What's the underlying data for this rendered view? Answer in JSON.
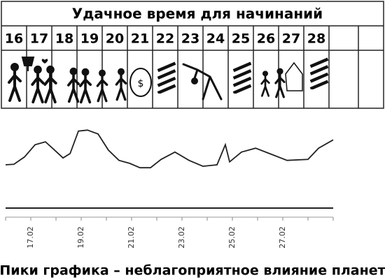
{
  "header": {
    "title": "Удачное время для начинаний"
  },
  "days": [
    "16",
    "17",
    "18",
    "19",
    "20",
    "21",
    "22",
    "23",
    "24",
    "25",
    "26",
    "27",
    "28"
  ],
  "chart_data": {
    "type": "line",
    "x": [
      16.0,
      16.33,
      16.75,
      17.17,
      17.58,
      17.86,
      18.28,
      18.56,
      18.89,
      19.25,
      19.67,
      20.08,
      20.5,
      20.92,
      21.33,
      21.75,
      22.17,
      22.72,
      23.28,
      23.83,
      24.39,
      24.72,
      24.89,
      25.36,
      25.92,
      26.47,
      27.17,
      28.0,
      28.42,
      29.0
    ],
    "values": [
      2.0,
      2.1,
      3.6,
      6.1,
      6.7,
      5.4,
      3.4,
      4.3,
      8.9,
      9.1,
      8.3,
      5.0,
      2.9,
      2.3,
      1.4,
      1.4,
      3.1,
      4.6,
      2.9,
      1.7,
      2.0,
      6.1,
      2.6,
      4.6,
      5.4,
      4.3,
      2.9,
      3.1,
      5.4,
      7.1
    ],
    "color": "#222222",
    "xlim": [
      16,
      29
    ],
    "ylim": [
      0,
      10
    ],
    "xticks": [
      {
        "value": 17,
        "label": "17.02"
      },
      {
        "value": 19,
        "label": "19.02"
      },
      {
        "value": 21,
        "label": "21.02"
      },
      {
        "value": 23,
        "label": "23.02"
      },
      {
        "value": 25,
        "label": "25.02"
      },
      {
        "value": 27,
        "label": "27.02"
      }
    ],
    "xminorticks": [
      16,
      18,
      20,
      22,
      24,
      26,
      28,
      29
    ],
    "caption": "Пики графика – неблагоприятное влияние планет"
  }
}
